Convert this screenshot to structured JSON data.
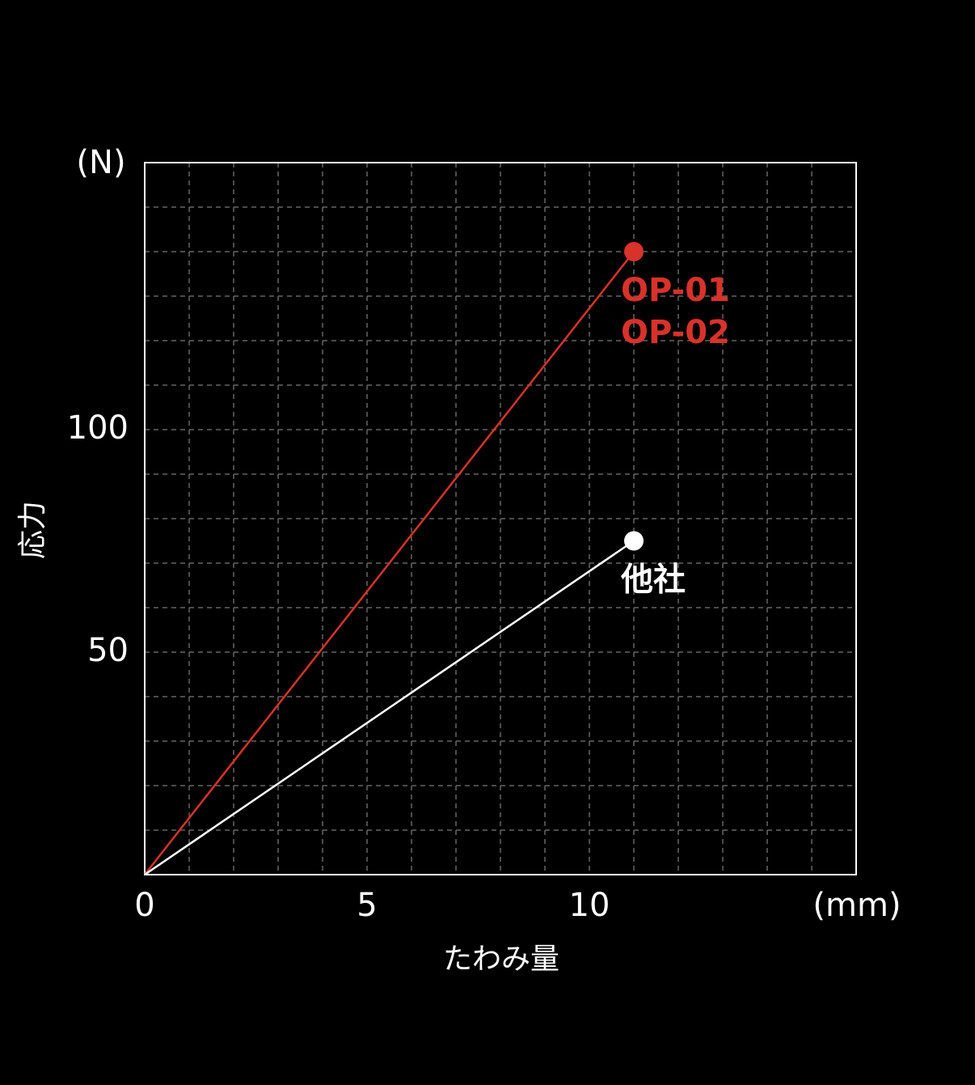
{
  "chart_data": {
    "type": "line",
    "x_label": "たわみ量",
    "y_label": "応力",
    "x_unit": "(mm)",
    "y_unit": "(N)",
    "xlim": [
      0,
      16
    ],
    "ylim": [
      0,
      160
    ],
    "xticks": [
      0,
      5,
      10
    ],
    "yticks": [
      50,
      100
    ],
    "grid": true,
    "x_grid_step": 1,
    "y_grid_step": 10,
    "series": [
      {
        "labels": [
          "OP-01",
          "OP-02"
        ],
        "color": "#d8322a",
        "x": [
          0,
          11
        ],
        "values": [
          0,
          140
        ]
      },
      {
        "labels": [
          "他社"
        ],
        "color": "#ffffff",
        "x": [
          0,
          11
        ],
        "values": [
          0,
          75
        ]
      }
    ]
  }
}
